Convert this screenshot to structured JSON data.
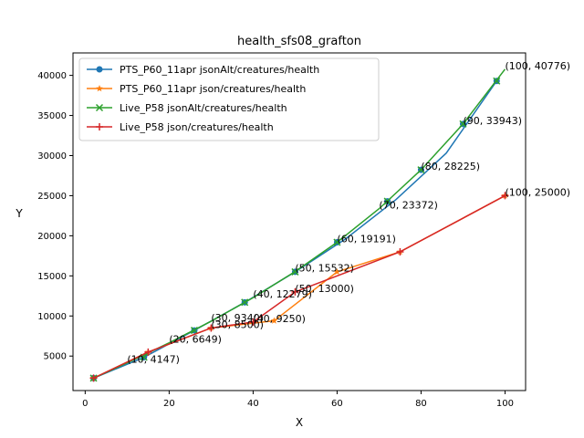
{
  "chart_data": {
    "type": "line",
    "title": "health_sfs08_grafton",
    "xlabel": "X",
    "ylabel": "Y",
    "xlim": [
      -2.9,
      104.9
    ],
    "ylim": [
      700,
      42800
    ],
    "xticks": [
      0,
      20,
      40,
      60,
      80,
      100
    ],
    "yticks": [
      5000,
      10000,
      15000,
      20000,
      25000,
      30000,
      35000,
      40000
    ],
    "grid": false,
    "legend_position": "top-left",
    "series": [
      {
        "name": "PTS_P60_11apr jsonAlt/creatures/health",
        "color": "#1f77b4",
        "marker": "circle",
        "x": [
          2,
          14,
          26,
          38,
          50,
          62,
          74,
          86,
          98
        ],
        "y": [
          2250,
          4850,
          8200,
          11700,
          15500,
          19600,
          24500,
          30300,
          39300
        ],
        "marker_x": [
          2,
          14,
          26,
          38,
          50,
          60,
          72,
          80,
          90,
          98
        ],
        "marker_y": [
          2250,
          4850,
          8200,
          11700,
          15500,
          19191,
          24300,
          28225,
          33943,
          39300
        ]
      },
      {
        "name": "PTS_P60_11apr json/creatures/health",
        "color": "#ff7f0e",
        "marker": "star",
        "x": [
          2,
          15,
          30,
          45,
          60,
          75,
          100
        ],
        "y": [
          2250,
          5500,
          8500,
          9400,
          15500,
          18000,
          25000
        ]
      },
      {
        "name": "Live_P58 jsonAlt/creatures/health",
        "color": "#2ca02c",
        "marker": "x",
        "x": [
          2,
          10,
          20,
          30,
          40,
          50,
          60,
          70,
          80,
          90,
          100
        ],
        "y": [
          2250,
          4147,
          6649,
          9340,
          12279,
          15532,
          19191,
          23372,
          28225,
          33943,
          40776
        ],
        "marker_x": [
          2,
          14,
          26,
          38,
          50,
          60,
          72,
          80,
          90,
          98
        ],
        "marker_y": [
          2250,
          4850,
          8200,
          11700,
          15500,
          19191,
          24300,
          28225,
          33943,
          39300
        ]
      },
      {
        "name": "Live_P58 json/creatures/health",
        "color": "#d62728",
        "marker": "plus",
        "x": [
          2,
          15,
          30,
          40,
          50,
          75,
          100
        ],
        "y": [
          2250,
          5500,
          8500,
          9250,
          13000,
          18000,
          25000
        ]
      }
    ],
    "annotations": [
      {
        "text": "(10, 4147)",
        "x": 10,
        "y": 4147
      },
      {
        "text": "(20, 6649)",
        "x": 20,
        "y": 6649
      },
      {
        "text": "(30, 9340)",
        "x": 30,
        "y": 9340
      },
      {
        "text": "(30, 8500)",
        "x": 30,
        "y": 8500
      },
      {
        "text": "(40, 12279)",
        "x": 40,
        "y": 12279
      },
      {
        "text": "(40, 9250)",
        "x": 40,
        "y": 9250
      },
      {
        "text": "(50, 15532)",
        "x": 50,
        "y": 15532
      },
      {
        "text": "(50, 13000)",
        "x": 50,
        "y": 13000
      },
      {
        "text": "(60, 19191)",
        "x": 60,
        "y": 19191
      },
      {
        "text": "(70, 23372)",
        "x": 70,
        "y": 23372
      },
      {
        "text": "(80, 28225)",
        "x": 80,
        "y": 28225
      },
      {
        "text": "(90, 33943)",
        "x": 90,
        "y": 33943
      },
      {
        "text": "(100, 40776)",
        "x": 100,
        "y": 40776
      },
      {
        "text": "(100, 25000)",
        "x": 100,
        "y": 25000
      }
    ]
  }
}
